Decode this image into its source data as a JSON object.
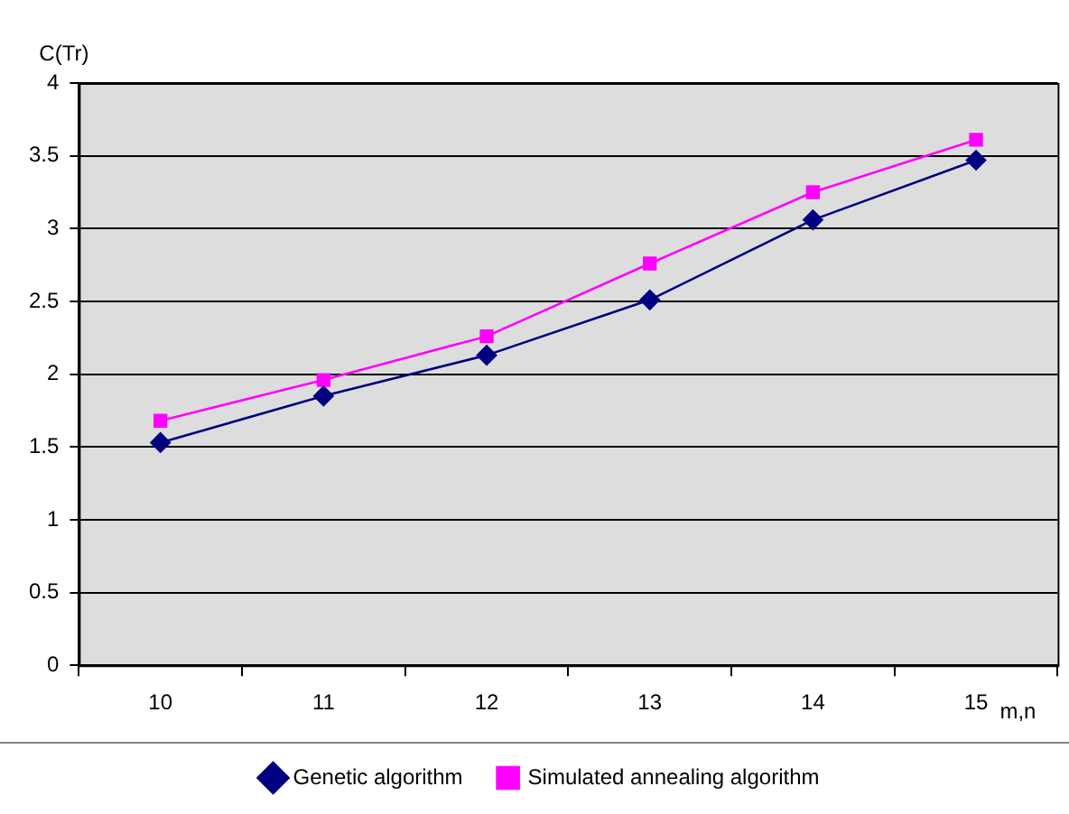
{
  "chart_data": {
    "type": "line",
    "ylabel": "C(Tr)",
    "xlabel": "m,n",
    "categories": [
      "10",
      "11",
      "12",
      "13",
      "14",
      "15"
    ],
    "series": [
      {
        "name": "Genetic algorithm",
        "color": "#000080",
        "marker": "diamond",
        "values": [
          1.53,
          1.85,
          2.13,
          2.51,
          3.06,
          3.47
        ]
      },
      {
        "name": "Simulated annealing algorithm",
        "color": "#ff00ff",
        "marker": "square",
        "values": [
          1.68,
          1.96,
          2.26,
          2.76,
          3.25,
          3.61
        ]
      }
    ],
    "ylim": [
      0,
      4
    ],
    "yticks": [
      0,
      0.5,
      1,
      1.5,
      2,
      2.5,
      3,
      3.5,
      4
    ],
    "grid": "y",
    "legend": "bottom",
    "line_style": "solid"
  }
}
